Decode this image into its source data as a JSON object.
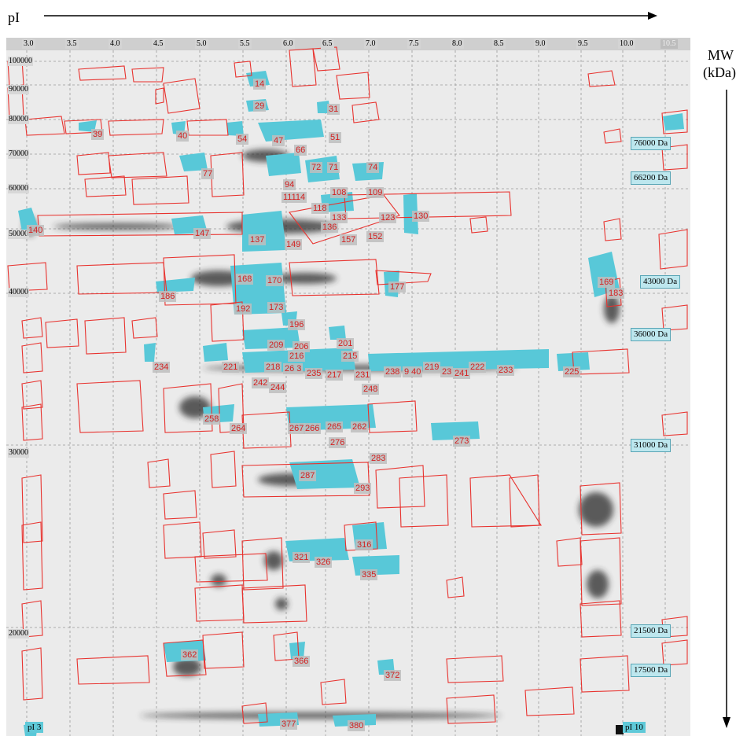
{
  "axes": {
    "x_title": "pI",
    "y_title_line1": "MW",
    "y_title_line2": "(kDa)"
  },
  "pi_ticks": [
    "3.0",
    "3.5",
    "4.0",
    "4.5",
    "5.0",
    "5.5",
    "6.0",
    "6.5",
    "7.0",
    "7.5",
    "8.0",
    "8.5",
    "9.0",
    "9.5",
    "10.0",
    "10.5"
  ],
  "mw_ticks": [
    "100000",
    "90000",
    "80000",
    "70000",
    "60000",
    "50000",
    "40000",
    "30000",
    "20000"
  ],
  "markers": [
    "76000 Da",
    "66200 Da",
    "43000 Da",
    "36000 Da",
    "31000 Da",
    "21500 Da",
    "17500 Da"
  ],
  "pi_ends": {
    "left": "pI 3",
    "right": "pI 10"
  },
  "spots": [
    "14",
    "29",
    "31",
    "39",
    "40",
    "54",
    "47",
    "51",
    "66",
    "72",
    "71",
    "74",
    "77",
    "94",
    "11114",
    "108",
    "109",
    "118",
    "133",
    "123",
    "130",
    "140",
    "147",
    "137",
    "149",
    "136",
    "157",
    "152",
    "168",
    "170",
    "177",
    "169",
    "183",
    "186",
    "192",
    "173",
    "196",
    "209",
    "206",
    "201",
    "215",
    "216",
    "234",
    "221",
    "218",
    "26 3",
    "235",
    "217",
    "231",
    "238",
    "9 40",
    "219",
    "23",
    "241",
    "222",
    "233",
    "225",
    "242",
    "244",
    "248",
    "258",
    "264",
    "267",
    "266",
    "265",
    "262",
    "273",
    "276",
    "283",
    "287",
    "293",
    "316",
    "321",
    "326",
    "335",
    "362",
    "366",
    "372",
    "377",
    "380"
  ],
  "colors": {
    "outline": "#e8322e",
    "highlight": "#58c8d8",
    "label_text": "#d31f1f",
    "gel_bg": "#ebebeb"
  }
}
